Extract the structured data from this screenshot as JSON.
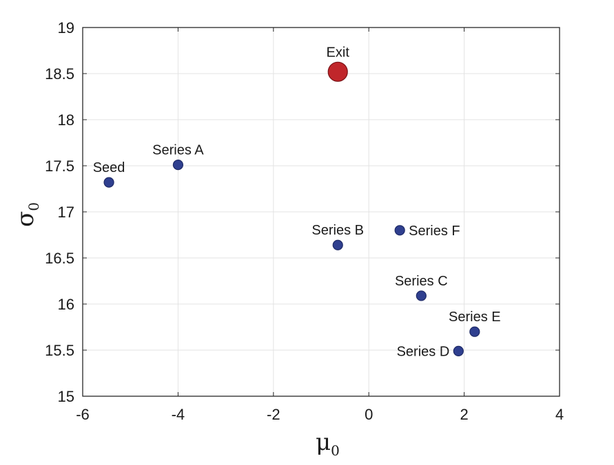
{
  "chart_data": {
    "type": "scatter",
    "title": "",
    "xlabel": "μ",
    "xlabel_subscript": "0",
    "ylabel": "σ",
    "ylabel_subscript": "0",
    "xlim": [
      -6,
      4
    ],
    "ylim": [
      15,
      19
    ],
    "x_ticks": [
      "-6",
      "-4",
      "-2",
      "0",
      "2",
      "4"
    ],
    "y_ticks": [
      "15",
      "15.5",
      "16",
      "16.5",
      "17",
      "17.5",
      "18",
      "18.5",
      "19"
    ],
    "grid": true,
    "points": [
      {
        "label": "Seed",
        "x": -5.45,
        "y": 17.32,
        "color": "#2f3f8f",
        "highlight": false,
        "label_pos": "above"
      },
      {
        "label": "Series A",
        "x": -4.0,
        "y": 17.51,
        "color": "#2f3f8f",
        "highlight": false,
        "label_pos": "above"
      },
      {
        "label": "Series B",
        "x": -0.65,
        "y": 16.64,
        "color": "#2f3f8f",
        "highlight": false,
        "label_pos": "above"
      },
      {
        "label": "Series F",
        "x": 0.65,
        "y": 16.8,
        "color": "#2f3f8f",
        "highlight": false,
        "label_pos": "right"
      },
      {
        "label": "Series C",
        "x": 1.1,
        "y": 16.09,
        "color": "#2f3f8f",
        "highlight": false,
        "label_pos": "above"
      },
      {
        "label": "Series E",
        "x": 2.22,
        "y": 15.7,
        "color": "#2f3f8f",
        "highlight": false,
        "label_pos": "above"
      },
      {
        "label": "Series D",
        "x": 1.88,
        "y": 15.49,
        "color": "#2f3f8f",
        "highlight": false,
        "label_pos": "left"
      },
      {
        "label": "Exit",
        "x": -0.65,
        "y": 18.52,
        "color": "#c0262b",
        "highlight": true,
        "label_pos": "above"
      }
    ]
  }
}
